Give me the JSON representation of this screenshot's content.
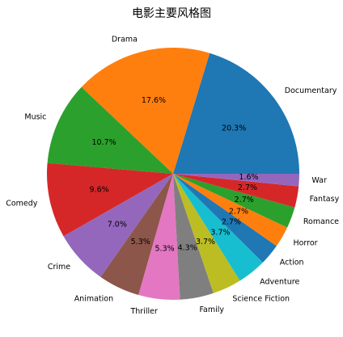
{
  "chart_data": {
    "type": "pie",
    "title": "电影主要风格图",
    "start_angle_deg": 0,
    "direction": "counterclockwise",
    "slices": [
      {
        "label": "Documentary",
        "value": 20.3,
        "pct_label": "20.3%",
        "color": "#1f77b4"
      },
      {
        "label": "Drama",
        "value": 17.6,
        "pct_label": "17.6%",
        "color": "#ff7f0e"
      },
      {
        "label": "Music",
        "value": 10.7,
        "pct_label": "10.7%",
        "color": "#2ca02c"
      },
      {
        "label": "Comedy",
        "value": 9.6,
        "pct_label": "9.6%",
        "color": "#d62728"
      },
      {
        "label": "Crime",
        "value": 7.0,
        "pct_label": "7.0%",
        "color": "#9467bd"
      },
      {
        "label": "Animation",
        "value": 5.3,
        "pct_label": "5.3%",
        "color": "#8c564b"
      },
      {
        "label": "Thriller",
        "value": 5.3,
        "pct_label": "5.3%",
        "color": "#e377c2"
      },
      {
        "label": "Family",
        "value": 4.3,
        "pct_label": "4.3%",
        "color": "#7f7f7f"
      },
      {
        "label": "Science Fiction",
        "value": 3.7,
        "pct_label": "3.7%",
        "color": "#bcbd22"
      },
      {
        "label": "Adventure",
        "value": 3.7,
        "pct_label": "3.7%",
        "color": "#17becf"
      },
      {
        "label": "Action",
        "value": 2.7,
        "pct_label": "2.7%",
        "color": "#1f77b4"
      },
      {
        "label": "Horror",
        "value": 2.7,
        "pct_label": "2.7%",
        "color": "#ff7f0e"
      },
      {
        "label": "Romance",
        "value": 2.7,
        "pct_label": "2.7%",
        "color": "#2ca02c"
      },
      {
        "label": "Fantasy",
        "value": 2.7,
        "pct_label": "2.7%",
        "color": "#d62728"
      },
      {
        "label": "War",
        "value": 1.6,
        "pct_label": "1.6%",
        "color": "#9467bd"
      }
    ]
  }
}
